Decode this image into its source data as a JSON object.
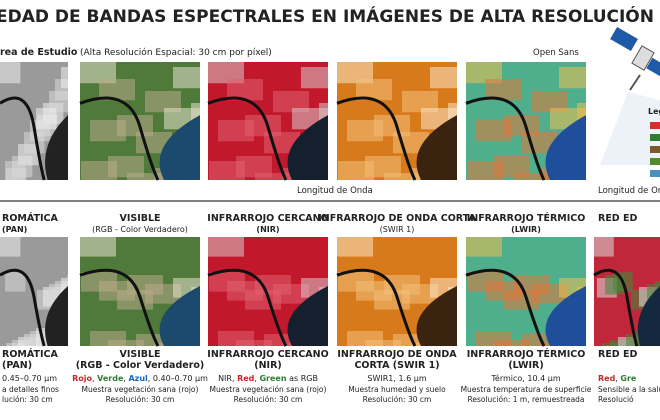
{
  "header": {
    "title": "EDAD DE BANDAS ESPECTRALES EN IMÁGENES DE ALTA RESOLUCIÓN ESPA",
    "area": "rea de Estudio",
    "area_note": "(Alta Resolución Espacial: 30 cm por píxel)",
    "font_note": "Open Sans",
    "legend": "Leg"
  },
  "axis": {
    "label": "Longitud de Onda",
    "label_right": "Longitud de Ond"
  },
  "columns": [
    {
      "title": "ROMÁTICA",
      "subtitle": "(PAN)",
      "bottom_title": [
        "ROMÁTICA",
        "(PAN)"
      ],
      "spec": [
        {
          "text": "0.45–0.70 µm"
        }
      ],
      "lines": [
        "a detalles finos",
        "lución: 30 cm"
      ]
    },
    {
      "title": "VISIBLE",
      "subtitle": "(RGB - Color Verdadero)",
      "bottom_title": [
        "VISIBLE",
        "(RGB - Color Verdadero)"
      ],
      "spec": [
        {
          "text": "Rojo",
          "color": "#c62828"
        },
        {
          "text": ", "
        },
        {
          "text": "Verde",
          "color": "#2e7d32"
        },
        {
          "text": ", "
        },
        {
          "text": "Azul",
          "color": "#1565c0"
        },
        {
          "text": ", 0.40–0.70 µm"
        }
      ],
      "lines": [
        "Muestra vegetación sana (rojo)",
        "Resolución: 30 cm"
      ]
    },
    {
      "title": "INFRARROJO CERCANO",
      "subtitle": "(NIR)",
      "bottom_title": [
        "INFRARROJO CERCANO",
        "(NIR)"
      ],
      "spec": [
        {
          "text": "NIR, "
        },
        {
          "text": "Red",
          "color": "#c62828"
        },
        {
          "text": ", "
        },
        {
          "text": "Green",
          "color": "#2e7d32"
        },
        {
          "text": " as RGB"
        }
      ],
      "lines": [
        "Muestra vegetación sana (rojo)",
        "Resolución: 30 cm"
      ]
    },
    {
      "title": "INFRARROJO DE ONDA CORTA",
      "subtitle": "(SWIR 1)",
      "bottom_title": [
        "INFRARROJO DE ONDA",
        "CORTA (SWIR 1)"
      ],
      "spec": [
        {
          "text": "SWIR1, 1.6 µm"
        }
      ],
      "lines": [
        "Muestra humedad y suelo",
        "Resolución: 30 cm"
      ]
    },
    {
      "title": "INFRARROJO TÉRMICO",
      "subtitle": "(LWIR)",
      "bottom_title": [
        "INFRARROJO TÉRMICO",
        "(LWIR)"
      ],
      "spec": [
        {
          "text": "Térmico, 10.4 µm"
        }
      ],
      "lines": [
        "Muestra temperatura de superficie",
        "Resolución: 1 m, remuestreada"
      ]
    },
    {
      "title": "RED ED",
      "bottom_title": [
        "RED ED"
      ],
      "spec": [
        {
          "text": "Red",
          "color": "#c62828"
        },
        {
          "text": ", "
        },
        {
          "text": "Gre",
          "color": "#2e7d32"
        }
      ],
      "lines": [
        "Sensible a la salud d",
        "Resolució"
      ]
    }
  ]
}
